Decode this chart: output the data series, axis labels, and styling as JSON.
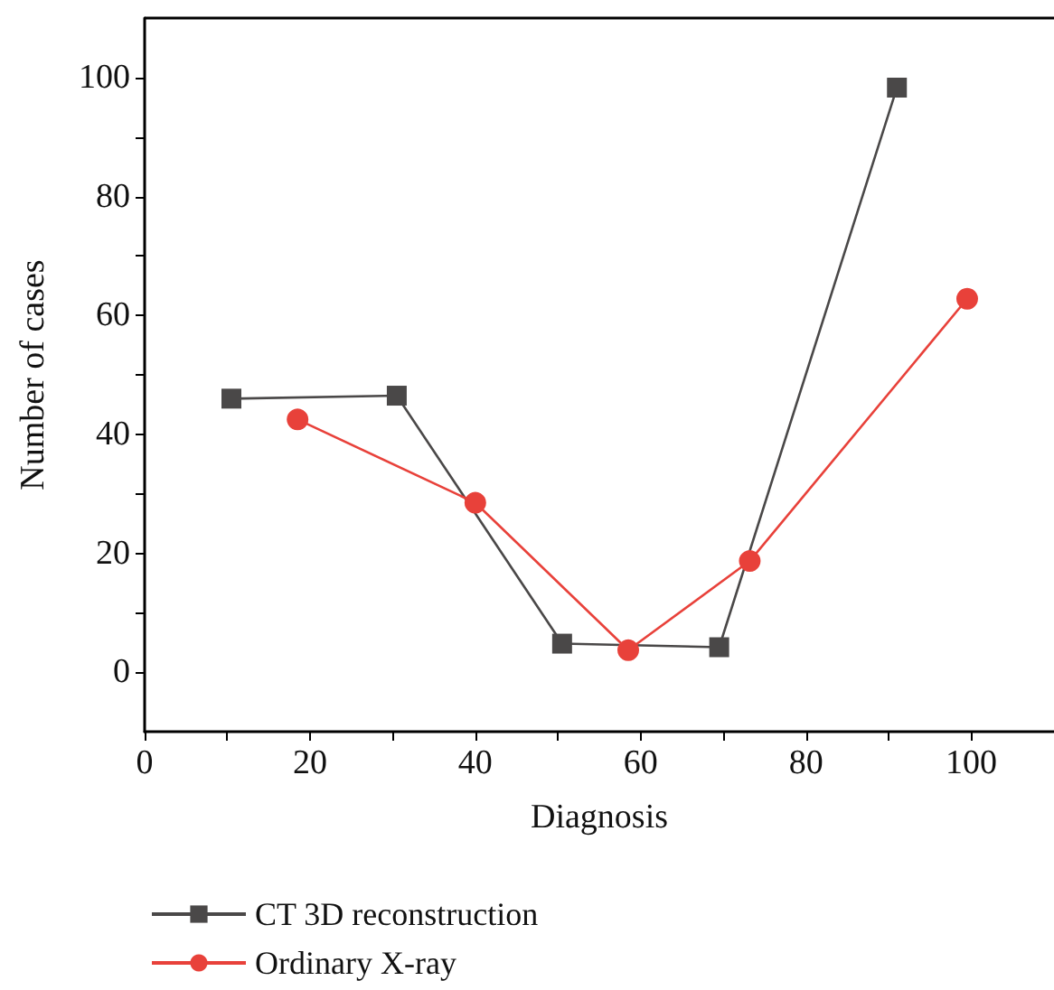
{
  "chart_data": {
    "type": "line",
    "xlabel": "Diagnosis",
    "ylabel": "Number of cases",
    "xlim": [
      0,
      110
    ],
    "xticks": [
      0,
      20,
      40,
      60,
      80,
      100
    ],
    "ylim": [
      -10,
      110
    ],
    "yticks": [
      0,
      20,
      40,
      60,
      80,
      100
    ],
    "grid": false,
    "legend": "bottom left",
    "line_style": "solid",
    "series": [
      {
        "name": "CT 3D reconstruction",
        "color": "#4a4848",
        "marker": "square",
        "x": [
          10.5,
          30.5,
          50.5,
          69.5,
          91
        ],
        "values": [
          46,
          46.5,
          4.8,
          4.2,
          98.3
        ]
      },
      {
        "name": "Ordinary X-ray",
        "color": "#e8413a",
        "marker": "circle",
        "x": [
          18.5,
          40,
          58.5,
          73.2,
          99.5
        ],
        "values": [
          42.5,
          28.5,
          3.7,
          18.7,
          62.8
        ]
      }
    ]
  }
}
